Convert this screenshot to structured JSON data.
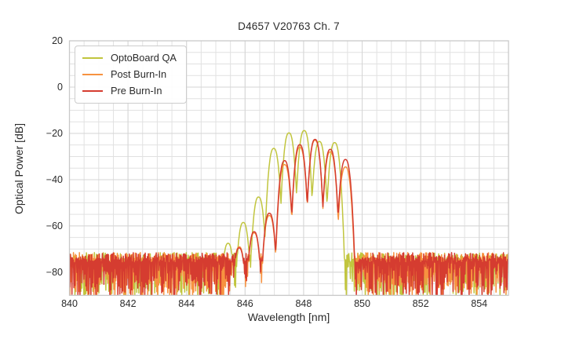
{
  "figure": {
    "title": "D4657 V20763 Ch. 7"
  },
  "legend": {
    "position": "upper left",
    "items": [
      {
        "label": "OptoBoard QA",
        "color": "#c1c53e"
      },
      {
        "label": "Post Burn-In",
        "color": "#f79240"
      },
      {
        "label": "Pre Burn-In",
        "color": "#d53c30"
      }
    ]
  },
  "chart_data": {
    "type": "line",
    "title": "D4657 V20763 Ch. 7",
    "xlabel": "Wavelength [nm]",
    "ylabel": "Optical Power [dB]",
    "xlim": [
      840,
      855
    ],
    "ylim": [
      -90,
      20
    ],
    "xticks": [
      840,
      842,
      844,
      846,
      848,
      850,
      852,
      854
    ],
    "yticks": [
      20,
      0,
      -20,
      -40,
      -60,
      -80
    ],
    "x_minor_step_nm": 0.5,
    "y_minor_step_db": 5,
    "grid": true,
    "grid_minor_color": "#e1e1e1",
    "grid_major_color": "#d5d5d5",
    "spine_color": "#c9c9c9",
    "background_color": "#ffffff",
    "noise_floor_db": {
      "top": -71.5,
      "mean": -80,
      "bottom": -92
    },
    "mode_spacing_nm": 0.52,
    "mode_halfwidth_nm": 0.26,
    "mode_rolloff_db": 27,
    "mode_rolloff_exponent": 2.5,
    "series": [
      {
        "name": "OptoBoard QA",
        "color": "#c1c53e",
        "peak_mode": {
          "wavelength_nm": 848.02,
          "power_db": -18.8
        },
        "modes": [
          [
            845.42,
            -67.5
          ],
          [
            845.94,
            -58.5
          ],
          [
            846.46,
            -47.5
          ],
          [
            846.98,
            -26.5
          ],
          [
            847.5,
            -19.8
          ],
          [
            848.02,
            -18.8
          ],
          [
            848.54,
            -23.5
          ],
          [
            849.06,
            -24.0
          ]
        ]
      },
      {
        "name": "Post Burn-In",
        "color": "#f79240",
        "peak_mode": {
          "wavelength_nm": 848.39,
          "power_db": -23.0
        },
        "modes": [
          [
            845.8,
            -69.0
          ],
          [
            846.31,
            -63.0
          ],
          [
            846.83,
            -55.5
          ],
          [
            847.35,
            -33.5
          ],
          [
            847.87,
            -26.0
          ],
          [
            848.39,
            -23.0
          ],
          [
            848.91,
            -28.0
          ],
          [
            849.43,
            -34.5
          ]
        ]
      },
      {
        "name": "Pre Burn-In",
        "color": "#d53c30",
        "peak_mode": {
          "wavelength_nm": 848.39,
          "power_db": -22.6
        },
        "modes": [
          [
            845.8,
            -69.5
          ],
          [
            846.31,
            -62.5
          ],
          [
            846.83,
            -54.5
          ],
          [
            847.35,
            -31.8
          ],
          [
            847.87,
            -24.9
          ],
          [
            848.39,
            -22.6
          ],
          [
            848.91,
            -26.9
          ],
          [
            849.43,
            -31.3
          ]
        ]
      }
    ]
  }
}
